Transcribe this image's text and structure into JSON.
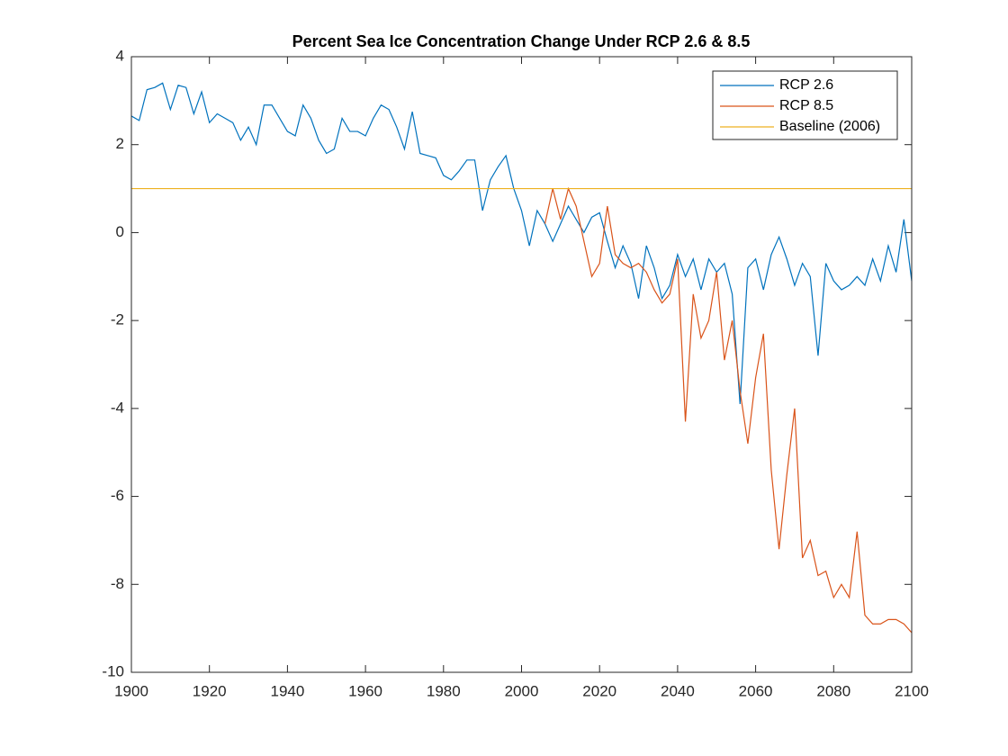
{
  "chart_data": {
    "type": "line",
    "title": "Percent Sea Ice Concentration Change Under RCP 2.6 & 8.5",
    "xlim": [
      1900,
      2100
    ],
    "xticks": [
      1900,
      1920,
      1940,
      1960,
      1980,
      2000,
      2020,
      2040,
      2060,
      2080,
      2100
    ],
    "ylim": [
      -10,
      4
    ],
    "yticks": [
      -10,
      -8,
      -6,
      -4,
      -2,
      0,
      2,
      4
    ],
    "grid": false,
    "legend": "northeast",
    "series": [
      {
        "name": "RCP 2.6",
        "color": "#0072bd",
        "x": [
          1900,
          1902,
          1904,
          1906,
          1908,
          1910,
          1912,
          1914,
          1916,
          1918,
          1920,
          1922,
          1924,
          1926,
          1928,
          1930,
          1932,
          1934,
          1936,
          1938,
          1940,
          1942,
          1944,
          1946,
          1948,
          1950,
          1952,
          1954,
          1956,
          1958,
          1960,
          1962,
          1964,
          1966,
          1968,
          1970,
          1972,
          1974,
          1976,
          1978,
          1980,
          1982,
          1984,
          1986,
          1988,
          1990,
          1992,
          1994,
          1996,
          1998,
          2000,
          2002,
          2004,
          2006,
          2008,
          2010,
          2012,
          2014,
          2016,
          2018,
          2020,
          2022,
          2024,
          2026,
          2028,
          2030,
          2032,
          2034,
          2036,
          2038,
          2040,
          2042,
          2044,
          2046,
          2048,
          2050,
          2052,
          2054,
          2056,
          2058,
          2060,
          2062,
          2064,
          2066,
          2068,
          2070,
          2072,
          2074,
          2076,
          2078,
          2080,
          2082,
          2084,
          2086,
          2088,
          2090,
          2092,
          2094,
          2096,
          2098,
          2100
        ],
        "values": [
          2.65,
          2.55,
          3.25,
          3.3,
          3.4,
          2.8,
          3.35,
          3.3,
          2.7,
          3.2,
          2.5,
          2.7,
          2.6,
          2.5,
          2.1,
          2.4,
          2.0,
          2.9,
          2.9,
          2.6,
          2.3,
          2.2,
          2.9,
          2.6,
          2.1,
          1.8,
          1.9,
          2.6,
          2.3,
          2.3,
          2.2,
          2.6,
          2.9,
          2.8,
          2.4,
          1.9,
          2.75,
          1.8,
          1.75,
          1.7,
          1.3,
          1.2,
          1.4,
          1.65,
          1.65,
          0.5,
          1.2,
          1.5,
          1.75,
          1.0,
          0.5,
          -0.3,
          0.5,
          0.2,
          -0.2,
          0.2,
          0.6,
          0.3,
          0.0,
          0.35,
          0.45,
          -0.2,
          -0.8,
          -0.3,
          -0.7,
          -1.5,
          -0.3,
          -0.8,
          -1.5,
          -1.2,
          -0.5,
          -1.0,
          -0.6,
          -1.3,
          -0.6,
          -0.9,
          -0.7,
          -1.4,
          -3.9,
          -0.8,
          -0.6,
          -1.3,
          -0.5,
          -0.1,
          -0.6,
          -1.2,
          -0.7,
          -1.0,
          -2.8,
          -0.7,
          -1.1,
          -1.3,
          -1.2,
          -1.0,
          -1.2,
          -0.6,
          -1.1,
          -0.3,
          -0.9,
          0.3,
          -1.1
        ]
      },
      {
        "name": "RCP 8.5",
        "color": "#d95319",
        "x": [
          2006,
          2008,
          2010,
          2012,
          2014,
          2016,
          2018,
          2020,
          2022,
          2024,
          2026,
          2028,
          2030,
          2032,
          2034,
          2036,
          2038,
          2040,
          2042,
          2044,
          2046,
          2048,
          2050,
          2052,
          2054,
          2056,
          2058,
          2060,
          2062,
          2064,
          2066,
          2068,
          2070,
          2072,
          2074,
          2076,
          2078,
          2080,
          2082,
          2084,
          2086,
          2088,
          2090,
          2092,
          2094,
          2096,
          2098,
          2100
        ],
        "values": [
          0.2,
          1.0,
          0.3,
          1.0,
          0.6,
          -0.2,
          -1.0,
          -0.7,
          0.6,
          -0.5,
          -0.7,
          -0.8,
          -0.7,
          -0.9,
          -1.3,
          -1.6,
          -1.4,
          -0.6,
          -4.3,
          -1.4,
          -2.4,
          -2.0,
          -0.9,
          -2.9,
          -2.0,
          -3.6,
          -4.8,
          -3.3,
          -2.3,
          -5.4,
          -7.2,
          -5.5,
          -4.0,
          -7.4,
          -7.0,
          -7.8,
          -7.7,
          -8.3,
          -8.0,
          -8.3,
          -6.8,
          -8.7,
          -8.9,
          -8.9,
          -8.8,
          -8.8,
          -8.9,
          -9.1
        ]
      },
      {
        "name": "Baseline (2006)",
        "color": "#edb120",
        "x": [
          1900,
          2100
        ],
        "values": [
          1,
          1
        ]
      }
    ]
  }
}
